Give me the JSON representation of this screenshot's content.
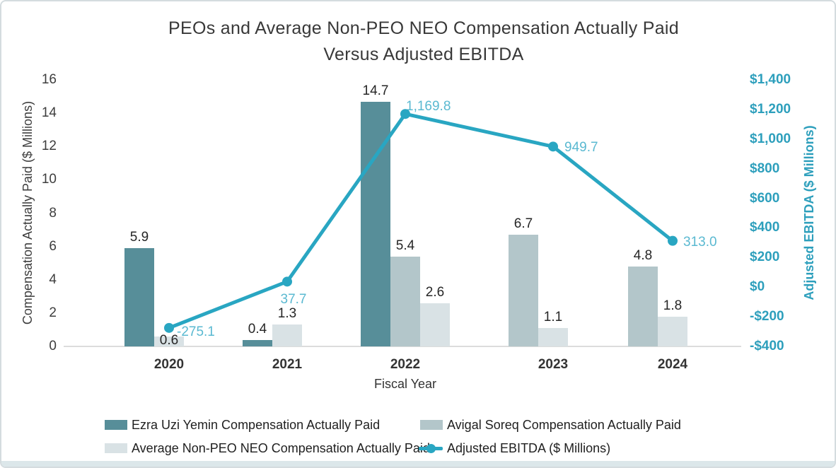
{
  "title": {
    "line1": "PEOs and Average Non-PEO NEO Compensation Actually Paid",
    "line2": "Versus Adjusted EBITDA"
  },
  "left_axis": {
    "title": "Compensation Actually Paid ($ Millions)",
    "tick_labels": [
      "16",
      "14",
      "12",
      "10",
      "8",
      "6",
      "4",
      "2",
      "0"
    ]
  },
  "right_axis": {
    "title": "Adjusted EBITDA ($ Millions)",
    "tick_labels": [
      "$1,400",
      "$1,200",
      "$1,000",
      "$800",
      "$600",
      "$400",
      "$200",
      "$0",
      "-$200",
      "-$400"
    ]
  },
  "x_axis": {
    "title": "Fiscal Year",
    "categories": [
      "2020",
      "2021",
      "2022",
      "2023",
      "2024"
    ]
  },
  "legend": {
    "items": [
      {
        "label": "Ezra Uzi Yemin Compensation Actually Paid",
        "marker": "square",
        "color": "#578e99"
      },
      {
        "label": "Avigal Soreq Compensation Actually Paid",
        "marker": "square",
        "color": "#b3c6ca"
      },
      {
        "label": "Average Non-PEO NEO Compensation Actually Paid",
        "marker": "square",
        "color": "#d9e2e5"
      },
      {
        "label": "Adjusted EBITDA ($ Millions)",
        "marker": "line-dot",
        "color": "#29a6c2"
      }
    ]
  },
  "colors": {
    "ezra_bar": "#578e99",
    "avigal_bar": "#b3c6ca",
    "avg_neo_bar": "#d9e2e5",
    "ebitda_line": "#29a6c2",
    "ebitda_label_text": "#5ab9d1",
    "right_axis_text": "#2d9fbc",
    "axis_line": "#dcdcdc",
    "bottom_strip": "#dce7ea"
  },
  "chart_data": {
    "type": "combo (grouped bar + line, dual axis)",
    "x": [
      "2020",
      "2021",
      "2022",
      "2023",
      "2024"
    ],
    "x_label": "Fiscal Year",
    "left_axis": {
      "label": "Compensation Actually Paid ($ Millions)",
      "range": [
        0,
        16
      ],
      "tick_step": 2
    },
    "right_axis": {
      "label": "Adjusted EBITDA ($ Millions)",
      "range": [
        -400,
        1400
      ],
      "tick_step": 200
    },
    "grid": false,
    "legend_position": "bottom",
    "series": [
      {
        "name": "Ezra Uzi Yemin Compensation Actually Paid",
        "key": "ezra",
        "type": "bar",
        "axis": "left",
        "color": "#578e99",
        "values": [
          5.9,
          0.4,
          14.7,
          null,
          null
        ],
        "labels": [
          "5.9",
          "0.4",
          "14.7",
          null,
          null
        ]
      },
      {
        "name": "Avigal Soreq Compensation Actually Paid",
        "key": "avigal",
        "type": "bar",
        "axis": "left",
        "color": "#b3c6ca",
        "values": [
          null,
          null,
          5.4,
          6.7,
          4.8
        ],
        "labels": [
          null,
          null,
          "5.4",
          "6.7",
          "4.8"
        ]
      },
      {
        "name": "Average Non-PEO NEO Compensation Actually Paid",
        "key": "avg",
        "type": "bar",
        "axis": "left",
        "color": "#d9e2e5",
        "values": [
          0.6,
          1.3,
          2.6,
          1.1,
          1.8
        ],
        "labels": [
          "0.6",
          "1.3",
          "2.6",
          "1.1",
          "1.8"
        ]
      },
      {
        "name": "Adjusted EBITDA ($ Millions)",
        "key": "ebitda",
        "type": "line",
        "axis": "right",
        "color": "#29a6c2",
        "label_color": "#5ab9d1",
        "values": [
          -275.1,
          37.7,
          1169.8,
          949.7,
          313.0
        ],
        "labels": [
          "-275.1",
          "37.7",
          "1,169.8",
          "949.7",
          "313.0"
        ]
      }
    ]
  }
}
